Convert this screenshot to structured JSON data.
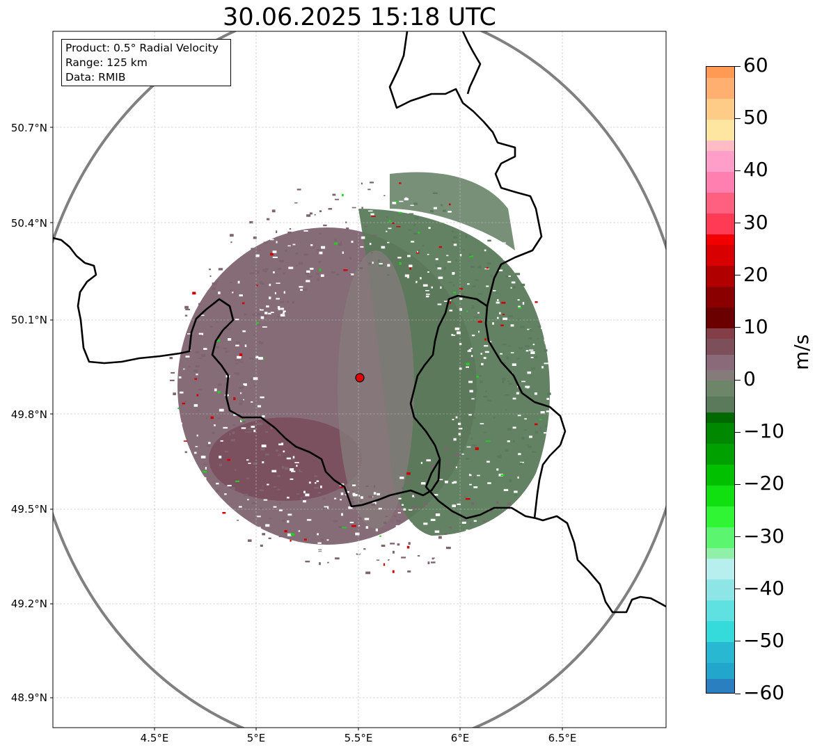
{
  "title": "30.06.2025 15:18 UTC",
  "info_box": {
    "product": "Product: 0.5° Radial Velocity",
    "range": "Range: 125 km",
    "data": "Data: RMIB"
  },
  "latitude_labels": [
    "50.7°N",
    "50.4°N",
    "50.1°N",
    "49.8°N",
    "49.5°N",
    "49.2°N",
    "48.9°N"
  ],
  "longitude_labels": [
    "4.5°E",
    "5°E",
    "5.5°E",
    "6°E",
    "6.5°E"
  ],
  "map_extent": {
    "lon_min": 4.0,
    "lon_max": 7.0,
    "lat_min": 48.8,
    "lat_max": 50.99
  },
  "radar_site": {
    "lon": 5.505,
    "lat": 49.915
  },
  "range_ring_km": 125,
  "colors": {
    "receding_max": "#7b5560",
    "approaching": "#5b7a5b",
    "border": "#000000",
    "range_ring": "#808080",
    "radar_marker": "#e00000"
  },
  "colorbar": {
    "unit": "m/s",
    "min": -60,
    "max": 60,
    "tick_labels": [
      "60",
      "50",
      "40",
      "30",
      "20",
      "10",
      "0",
      "−10",
      "−20",
      "−30",
      "−40",
      "−50",
      "−60"
    ],
    "stops": [
      {
        "from": -60,
        "to": -57,
        "color": "#2a7fc0"
      },
      {
        "from": -57,
        "to": -54,
        "color": "#23a6cc"
      },
      {
        "from": -54,
        "to": -50,
        "color": "#28b8d2"
      },
      {
        "from": -50,
        "to": -46,
        "color": "#35dada"
      },
      {
        "from": -46,
        "to": -42,
        "color": "#5fe1e1"
      },
      {
        "from": -42,
        "to": -38,
        "color": "#8ee5e5"
      },
      {
        "from": -38,
        "to": -34,
        "color": "#b7eeee"
      },
      {
        "from": -34,
        "to": -32,
        "color": "#90f0a8"
      },
      {
        "from": -32,
        "to": -28,
        "color": "#5cf56f"
      },
      {
        "from": -28,
        "to": -24,
        "color": "#2ff535"
      },
      {
        "from": -24,
        "to": -20,
        "color": "#10e010"
      },
      {
        "from": -20,
        "to": -16,
        "color": "#00c000"
      },
      {
        "from": -16,
        "to": -12,
        "color": "#00a000"
      },
      {
        "from": -12,
        "to": -8,
        "color": "#008800"
      },
      {
        "from": -8,
        "to": -6,
        "color": "#006a00"
      },
      {
        "from": -6,
        "to": -3,
        "color": "#5b7a5b"
      },
      {
        "from": -3,
        "to": 0,
        "color": "#6d8568"
      },
      {
        "from": 0,
        "to": 2,
        "color": "#857b7b"
      },
      {
        "from": 2,
        "to": 5,
        "color": "#8a6a78"
      },
      {
        "from": 5,
        "to": 8,
        "color": "#7d4f5a"
      },
      {
        "from": 8,
        "to": 10,
        "color": "#843e47"
      },
      {
        "from": 10,
        "to": 14,
        "color": "#6a0000"
      },
      {
        "from": 14,
        "to": 18,
        "color": "#8a0000"
      },
      {
        "from": 18,
        "to": 22,
        "color": "#b00000"
      },
      {
        "from": 22,
        "to": 26,
        "color": "#d80000"
      },
      {
        "from": 26,
        "to": 28,
        "color": "#f20000"
      },
      {
        "from": 28,
        "to": 32,
        "color": "#ff3a55"
      },
      {
        "from": 32,
        "to": 36,
        "color": "#ff6080"
      },
      {
        "from": 36,
        "to": 40,
        "color": "#ff80b0"
      },
      {
        "from": 40,
        "to": 44,
        "color": "#ff9ec8"
      },
      {
        "from": 44,
        "to": 46,
        "color": "#ffbcc4"
      },
      {
        "from": 46,
        "to": 50,
        "color": "#ffe6a0"
      },
      {
        "from": 50,
        "to": 54,
        "color": "#ffcc88"
      },
      {
        "from": 54,
        "to": 58,
        "color": "#ffb070"
      },
      {
        "from": 58,
        "to": 60,
        "color": "#ff9a55"
      }
    ]
  }
}
